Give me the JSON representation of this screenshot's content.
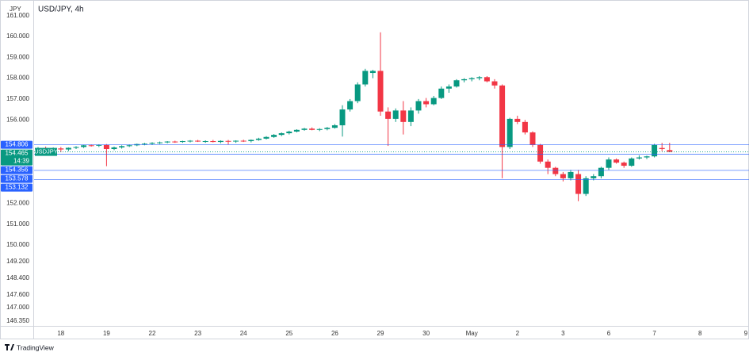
{
  "chart_data": {
    "type": "candlestick",
    "title": "USD/JPY, 4h",
    "y_unit": "JPY",
    "up_color": "#089981",
    "down_color": "#f23645",
    "line_color": "#2962ff",
    "ylim": [
      146.12,
      161.56
    ],
    "yticks": [
      {
        "value": 161,
        "label": "161.000"
      },
      {
        "value": 160,
        "label": "160.000"
      },
      {
        "value": 159,
        "label": "159.000"
      },
      {
        "value": 158,
        "label": "158.000"
      },
      {
        "value": 157,
        "label": "157.000"
      },
      {
        "value": 156,
        "label": "156.000"
      },
      {
        "value": 152,
        "label": "152.000"
      },
      {
        "value": 151,
        "label": "151.000"
      },
      {
        "value": 150,
        "label": "150.000"
      },
      {
        "value": 149.2,
        "label": "149.200"
      },
      {
        "value": 148.4,
        "label": "148.400"
      },
      {
        "value": 147.6,
        "label": "147.600"
      },
      {
        "value": 147,
        "label": "147.000"
      },
      {
        "value": 146.35,
        "label": "146.350"
      }
    ],
    "categories": [
      null,
      null,
      null,
      "18",
      null,
      null,
      null,
      null,
      null,
      "19",
      null,
      null,
      null,
      null,
      null,
      "22",
      null,
      null,
      null,
      null,
      null,
      "23",
      null,
      null,
      null,
      null,
      null,
      "24",
      null,
      null,
      null,
      null,
      null,
      "25",
      null,
      null,
      null,
      null,
      null,
      "26",
      null,
      null,
      null,
      null,
      null,
      "29",
      null,
      null,
      null,
      null,
      null,
      "30",
      null,
      null,
      null,
      null,
      null,
      "May",
      null,
      null,
      null,
      null,
      null,
      "2",
      null,
      null,
      null,
      null,
      null,
      "3",
      null,
      null,
      null,
      null,
      null,
      "6",
      null,
      null,
      null,
      null,
      null,
      "7",
      null,
      null,
      null,
      null,
      null,
      "8",
      null,
      null,
      null,
      null,
      null,
      "9"
    ],
    "open": [
      154.62,
      154.65,
      154.6,
      154.63,
      154.58,
      154.66,
      154.7,
      154.78,
      154.76,
      154.8,
      154.6,
      154.68,
      154.74,
      154.78,
      154.84,
      154.86,
      154.9,
      154.92,
      154.96,
      154.94,
      154.98,
      155.0,
      154.96,
      154.98,
      154.94,
      154.99,
      154.96,
      155.0,
      154.98,
      155.04,
      155.1,
      155.18,
      155.28,
      155.36,
      155.44,
      155.52,
      155.58,
      155.52,
      155.56,
      155.62,
      155.74,
      156.5,
      156.9,
      157.7,
      158.25,
      158.35,
      156.4,
      156.05,
      156.45,
      155.9,
      156.45,
      156.9,
      156.75,
      157.05,
      157.5,
      157.6,
      157.9,
      157.95,
      158.0,
      158.05,
      157.85,
      157.65,
      154.7,
      156.05,
      155.9,
      155.4,
      154.8,
      154.0,
      153.7,
      153.4,
      153.2,
      153.4,
      152.45,
      153.2,
      153.3,
      153.7,
      154.1,
      153.95,
      153.8,
      154.15,
      154.2,
      154.25,
      154.65,
      154.55,
      null,
      null,
      null,
      null,
      null,
      null,
      null,
      null,
      null,
      null
    ],
    "high": [
      154.7,
      154.72,
      154.68,
      154.7,
      154.68,
      154.74,
      154.8,
      154.82,
      154.83,
      154.84,
      154.72,
      154.78,
      154.82,
      154.86,
      154.9,
      154.93,
      154.96,
      154.98,
      155.0,
      155.0,
      155.03,
      155.04,
      155.02,
      155.04,
      155.02,
      155.04,
      155.02,
      155.05,
      155.06,
      155.14,
      155.22,
      155.32,
      155.4,
      155.48,
      155.55,
      155.62,
      155.64,
      155.6,
      155.66,
      155.8,
      156.7,
      157.0,
      157.8,
      158.45,
      158.4,
      160.2,
      156.6,
      156.55,
      156.9,
      156.6,
      157.0,
      157.05,
      157.15,
      157.6,
      157.7,
      157.95,
      158.0,
      158.05,
      158.1,
      158.1,
      157.95,
      157.7,
      156.1,
      156.2,
      156.0,
      155.45,
      154.85,
      154.1,
      153.75,
      153.5,
      153.6,
      153.6,
      153.3,
      153.4,
      153.75,
      154.2,
      154.15,
      154.0,
      154.2,
      154.3,
      154.28,
      154.85,
      154.9,
      154.9,
      null,
      null,
      null,
      null,
      null,
      null,
      null,
      null,
      null,
      null
    ],
    "low": [
      154.55,
      154.58,
      154.5,
      154.45,
      154.5,
      154.6,
      154.65,
      154.72,
      154.7,
      153.78,
      154.55,
      154.62,
      154.7,
      154.74,
      154.78,
      154.8,
      154.84,
      154.88,
      154.9,
      154.9,
      154.92,
      154.94,
      154.9,
      154.92,
      154.88,
      154.82,
      154.9,
      154.94,
      154.92,
      155.0,
      155.06,
      155.14,
      155.22,
      155.3,
      155.4,
      155.48,
      155.5,
      155.46,
      155.5,
      155.58,
      155.2,
      156.4,
      156.8,
      157.6,
      158.0,
      156.2,
      154.75,
      155.9,
      155.3,
      155.7,
      156.3,
      156.6,
      156.7,
      157.0,
      157.3,
      157.55,
      157.8,
      157.85,
      157.9,
      157.8,
      157.5,
      153.2,
      154.6,
      155.8,
      155.3,
      154.7,
      153.9,
      153.4,
      153.3,
      153.05,
      153.1,
      152.1,
      152.35,
      153.1,
      153.2,
      153.6,
      153.9,
      153.7,
      153.75,
      154.1,
      154.12,
      154.2,
      154.5,
      154.45,
      null,
      null,
      null,
      null,
      null,
      null,
      null,
      null,
      null,
      null
    ],
    "close": [
      154.65,
      154.6,
      154.63,
      154.58,
      154.66,
      154.7,
      154.78,
      154.76,
      154.8,
      154.6,
      154.68,
      154.74,
      154.78,
      154.84,
      154.86,
      154.9,
      154.92,
      154.96,
      154.94,
      154.98,
      155.0,
      154.96,
      154.98,
      154.94,
      154.99,
      154.96,
      155.0,
      154.98,
      155.04,
      155.1,
      155.18,
      155.28,
      155.36,
      155.44,
      155.52,
      155.58,
      155.52,
      155.56,
      155.62,
      155.74,
      156.5,
      156.9,
      157.7,
      158.35,
      158.35,
      156.4,
      156.05,
      156.45,
      155.9,
      156.45,
      156.9,
      156.75,
      157.05,
      157.5,
      157.6,
      157.9,
      157.95,
      158.0,
      158.05,
      157.85,
      157.65,
      154.7,
      156.05,
      155.9,
      155.4,
      154.8,
      154.0,
      153.7,
      153.4,
      153.2,
      153.5,
      152.45,
      153.2,
      153.3,
      153.7,
      154.1,
      153.95,
      153.8,
      154.15,
      154.2,
      154.25,
      154.8,
      154.6,
      154.465,
      null,
      null,
      null,
      null,
      null,
      null,
      null,
      null,
      null,
      null
    ],
    "price_lines": [
      154.806,
      154.356,
      153.578,
      153.132
    ],
    "last_price": {
      "symbol": "USDJPY",
      "value": 154.465,
      "countdown": "14:39",
      "color": "#089981"
    }
  },
  "footer": {
    "brand": "TradingView"
  }
}
